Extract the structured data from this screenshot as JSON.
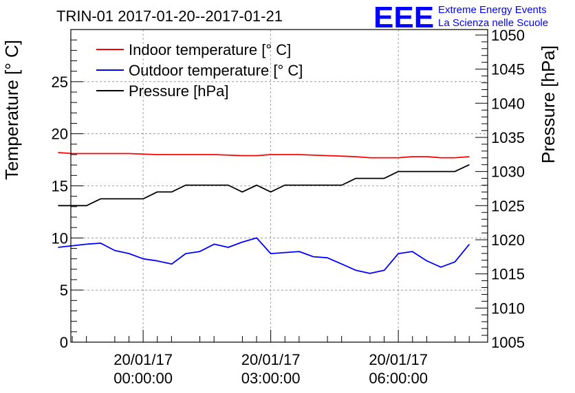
{
  "chart_data": {
    "type": "line",
    "title": "TRIN-01 2017-01-20--2017-01-21",
    "ylabel": "Temperature [° C]",
    "y2label": "Pressure [hPa]",
    "ylim": [
      0,
      30
    ],
    "y2lim": [
      1005,
      1050.8
    ],
    "yticks": [
      "0",
      "5",
      "10",
      "15",
      "20",
      "25"
    ],
    "y2ticks": [
      "1005",
      "1010",
      "1015",
      "1020",
      "1025",
      "1030",
      "1035",
      "1040",
      "1045",
      "1050"
    ],
    "xlim": [
      -1.7,
      8.1
    ],
    "xticks": [
      {
        "x": 0,
        "line1": "20/01/17",
        "line2": "00:00:00"
      },
      {
        "x": 3,
        "line1": "20/01/17",
        "line2": "03:00:00"
      },
      {
        "x": 6,
        "line1": "20/01/17",
        "line2": "06:00:00"
      }
    ],
    "grid": true,
    "legend_position": "top-left",
    "series": [
      {
        "name": "Indoor temperature [° C]",
        "axis": "left",
        "color": "#ff0000",
        "x": [
          -2.0,
          -1.67,
          -1.0,
          -0.33,
          0.33,
          1.0,
          1.67,
          2.33,
          2.67,
          3.0,
          3.33,
          3.67,
          4.33,
          5.0,
          5.33,
          6.0,
          6.33,
          6.67,
          7.0,
          7.33,
          7.67
        ],
        "y": [
          18.2,
          18.1,
          18.1,
          18.1,
          18.0,
          18.0,
          18.0,
          17.9,
          17.9,
          18.0,
          18.0,
          18.0,
          17.9,
          17.8,
          17.7,
          17.7,
          17.8,
          17.8,
          17.7,
          17.7,
          17.8
        ]
      },
      {
        "name": "Outdoor temperature [° C]",
        "axis": "left",
        "color": "#0000ff",
        "x": [
          -2.0,
          -1.33,
          -1.0,
          -0.67,
          -0.33,
          0.0,
          0.33,
          0.67,
          1.0,
          1.33,
          1.67,
          2.0,
          2.33,
          2.67,
          3.0,
          3.33,
          3.67,
          4.0,
          4.33,
          4.67,
          5.0,
          5.33,
          5.67,
          6.0,
          6.33,
          6.67,
          7.0,
          7.33,
          7.67
        ],
        "y": [
          9.1,
          9.4,
          9.5,
          8.8,
          8.5,
          8.0,
          7.8,
          7.5,
          8.5,
          8.7,
          9.4,
          9.1,
          9.6,
          10.0,
          8.5,
          8.6,
          8.7,
          8.2,
          8.1,
          7.5,
          6.9,
          6.6,
          6.9,
          8.5,
          8.7,
          7.8,
          7.2,
          7.7,
          9.4
        ]
      },
      {
        "name": "Pressure [hPa]",
        "axis": "right",
        "color": "#000000",
        "x": [
          -2.0,
          -1.33,
          -1.0,
          -0.67,
          0.0,
          0.33,
          0.67,
          1.0,
          1.33,
          1.67,
          2.0,
          2.33,
          2.67,
          3.0,
          3.33,
          3.67,
          4.0,
          4.33,
          4.67,
          5.0,
          5.33,
          5.67,
          6.0,
          6.33,
          6.67,
          7.0,
          7.33,
          7.67
        ],
        "y": [
          1025,
          1025,
          1026,
          1026,
          1026,
          1027,
          1027,
          1028,
          1028,
          1028,
          1028,
          1027,
          1028,
          1027,
          1028,
          1028,
          1028,
          1028,
          1028,
          1029,
          1029,
          1029,
          1030,
          1030,
          1030,
          1030,
          1030,
          1031
        ]
      }
    ]
  },
  "logo": {
    "mark": "EEE",
    "line1": "Extreme Energy Events",
    "line2": "La Scienza nelle Scuole",
    "color": "#0000ff"
  }
}
